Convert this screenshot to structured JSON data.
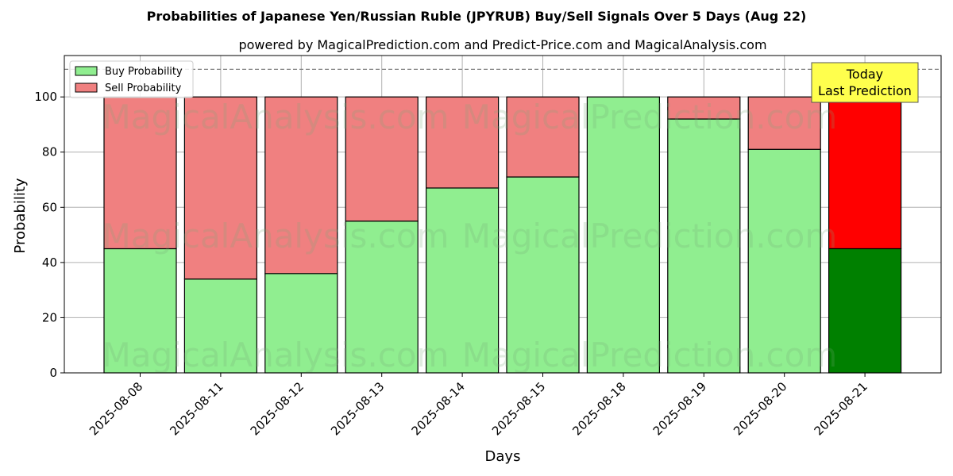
{
  "chart_data": {
    "type": "bar",
    "stacked": true,
    "title": "Probabilities of Japanese Yen/Russian Ruble (JPYRUB) Buy/Sell Signals Over 5 Days (Aug 22)",
    "subtitle": "powered by MagicalPrediction.com and Predict-Price.com and MagicalAnalysis.com",
    "xlabel": "Days",
    "ylabel": "Probability",
    "ylim": [
      0,
      115
    ],
    "yticks": [
      0,
      20,
      40,
      60,
      80,
      100
    ],
    "reference_line": 110,
    "grid": true,
    "legend_position": "top-left",
    "categories": [
      "2025-08-08",
      "2025-08-11",
      "2025-08-12",
      "2025-08-13",
      "2025-08-14",
      "2025-08-15",
      "2025-08-18",
      "2025-08-19",
      "2025-08-20",
      "2025-08-21"
    ],
    "series": [
      {
        "name": "Buy Probability",
        "color": "#90ee90",
        "values": [
          45,
          34,
          36,
          55,
          67,
          71,
          100,
          92,
          81,
          45
        ]
      },
      {
        "name": "Sell Probability",
        "color": "#f08080",
        "values": [
          55,
          66,
          64,
          45,
          33,
          29,
          0,
          8,
          19,
          55
        ]
      }
    ],
    "highlight": {
      "index": 9,
      "buy_color": "#008000",
      "sell_color": "#ff0000"
    },
    "annotation": {
      "line1": "Today",
      "line2": "Last Prediction",
      "color": "#ffff4d"
    },
    "watermarks": [
      "MagicalAnalysis.com",
      "MagicalPrediction.com"
    ]
  }
}
